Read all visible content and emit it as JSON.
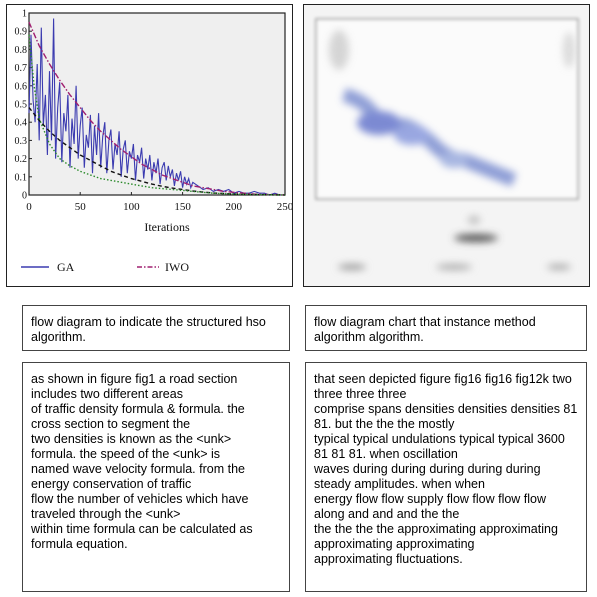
{
  "chart_data": {
    "type": "line",
    "title": "",
    "xlabel": "Iterations",
    "ylabel": "",
    "xlim": [
      0,
      250
    ],
    "ylim": [
      0,
      1
    ],
    "x_ticks": [
      "0",
      "50",
      "100",
      "150",
      "200",
      "250"
    ],
    "y_ticks": [
      "0",
      "0.1",
      "0.2",
      "0.3",
      "0.4",
      "0.5",
      "0.6",
      "0.7",
      "0.8",
      "0.9",
      "1"
    ],
    "legend_position": "bottom",
    "series": [
      {
        "name": "GA",
        "color": "#3b3bb0",
        "style": "solid",
        "x": [
          0,
          2,
          4,
          6,
          8,
          10,
          12,
          14,
          16,
          18,
          20,
          22,
          24,
          26,
          28,
          30,
          32,
          34,
          36,
          38,
          40,
          42,
          44,
          46,
          48,
          50,
          52,
          54,
          56,
          58,
          60,
          62,
          64,
          66,
          68,
          70,
          72,
          74,
          76,
          78,
          80,
          82,
          84,
          86,
          88,
          90,
          92,
          94,
          96,
          98,
          100,
          102,
          104,
          106,
          108,
          110,
          112,
          114,
          116,
          118,
          120,
          122,
          124,
          126,
          128,
          130,
          132,
          134,
          136,
          138,
          140,
          142,
          144,
          146,
          148,
          150,
          152,
          154,
          156,
          158,
          160,
          165,
          170,
          175,
          180,
          185,
          190,
          195,
          200,
          205,
          210,
          215,
          220,
          225,
          230,
          235,
          240,
          245,
          250
        ],
        "values": [
          0.45,
          0.88,
          0.52,
          0.4,
          0.72,
          0.3,
          0.92,
          0.38,
          0.55,
          0.22,
          0.68,
          0.3,
          0.97,
          0.2,
          0.48,
          0.62,
          0.18,
          0.45,
          0.35,
          0.55,
          0.15,
          0.42,
          0.28,
          0.6,
          0.2,
          0.38,
          0.48,
          0.15,
          0.33,
          0.26,
          0.44,
          0.12,
          0.38,
          0.22,
          0.45,
          0.15,
          0.32,
          0.4,
          0.12,
          0.3,
          0.36,
          0.14,
          0.28,
          0.22,
          0.35,
          0.1,
          0.25,
          0.3,
          0.12,
          0.24,
          0.2,
          0.28,
          0.08,
          0.22,
          0.18,
          0.26,
          0.09,
          0.2,
          0.14,
          0.22,
          0.08,
          0.18,
          0.12,
          0.2,
          0.06,
          0.15,
          0.18,
          0.08,
          0.16,
          0.1,
          0.14,
          0.05,
          0.12,
          0.08,
          0.13,
          0.04,
          0.1,
          0.06,
          0.09,
          0.04,
          0.07,
          0.05,
          0.03,
          0.04,
          0.02,
          0.03,
          0.02,
          0.03,
          0.01,
          0.02,
          0.01,
          0.01,
          0.02,
          0.01,
          0.01,
          0.0,
          0.01,
          0.0,
          0.0
        ]
      },
      {
        "name": "IWO",
        "color": "#a02070",
        "style": "dashdot",
        "x": [
          0,
          10,
          20,
          30,
          40,
          50,
          60,
          70,
          80,
          90,
          100,
          110,
          120,
          130,
          140,
          150,
          160,
          170,
          180,
          190,
          200,
          210,
          220,
          230,
          240,
          250
        ],
        "values": [
          0.95,
          0.82,
          0.72,
          0.63,
          0.55,
          0.48,
          0.41,
          0.35,
          0.3,
          0.25,
          0.21,
          0.17,
          0.14,
          0.11,
          0.09,
          0.07,
          0.05,
          0.04,
          0.03,
          0.02,
          0.015,
          0.01,
          0.005,
          0.003,
          0.002,
          0.0
        ]
      },
      {
        "name": "",
        "color": "#111111",
        "style": "dashed",
        "x": [
          0,
          10,
          20,
          30,
          40,
          50,
          60,
          70,
          80,
          90,
          100,
          110,
          120,
          130,
          140,
          150,
          160,
          170,
          180,
          190,
          200,
          220,
          250
        ],
        "values": [
          0.48,
          0.41,
          0.35,
          0.3,
          0.26,
          0.22,
          0.19,
          0.16,
          0.13,
          0.11,
          0.09,
          0.075,
          0.06,
          0.048,
          0.038,
          0.03,
          0.022,
          0.016,
          0.011,
          0.008,
          0.005,
          0.002,
          0.0
        ]
      },
      {
        "name": "",
        "color": "#2a8a2a",
        "style": "dotted",
        "x": [
          0,
          5,
          10,
          20,
          30,
          40,
          50,
          60,
          70,
          80,
          90,
          100,
          110,
          120,
          130,
          140,
          150,
          160,
          170,
          180,
          200,
          250
        ],
        "values": [
          0.88,
          0.6,
          0.42,
          0.28,
          0.2,
          0.16,
          0.13,
          0.11,
          0.09,
          0.08,
          0.07,
          0.06,
          0.05,
          0.04,
          0.035,
          0.03,
          0.025,
          0.02,
          0.015,
          0.01,
          0.005,
          0.0
        ]
      }
    ]
  },
  "captions": {
    "left": "flow diagram to indicate the structured hso algorithm.",
    "right": "flow diagram chart that instance method algorithm algorithm."
  },
  "body_left": [
    "as shown in figure fig1 a road section",
    "includes two different areas",
    "of traffic density formula & formula. the",
    "cross section to segment the",
    "two densities is known as the <unk>",
    "formula. the speed of the <unk> is",
    "named wave velocity formula. from the",
    "energy conservation of traffic",
    "flow the number of vehicles which have",
    "traveled through the <unk>",
    "within time formula can be calculated as",
    "formula equation."
  ],
  "body_right": [
    "that seen depicted figure fig16 fig16 fig12k two",
    "three three three",
    "comprise spans densities densities densities 81",
    "81. but the the the mostly",
    "typical typical undulations typical typical 3600",
    "81 81 81. when oscillation",
    "waves during during during during during",
    "steady amplitudes. when when",
    "energy flow flow supply flow flow flow flow",
    "along and and and the the",
    "the the the the approximating approximating",
    "approximating approximating",
    "approximating fluctuations."
  ]
}
